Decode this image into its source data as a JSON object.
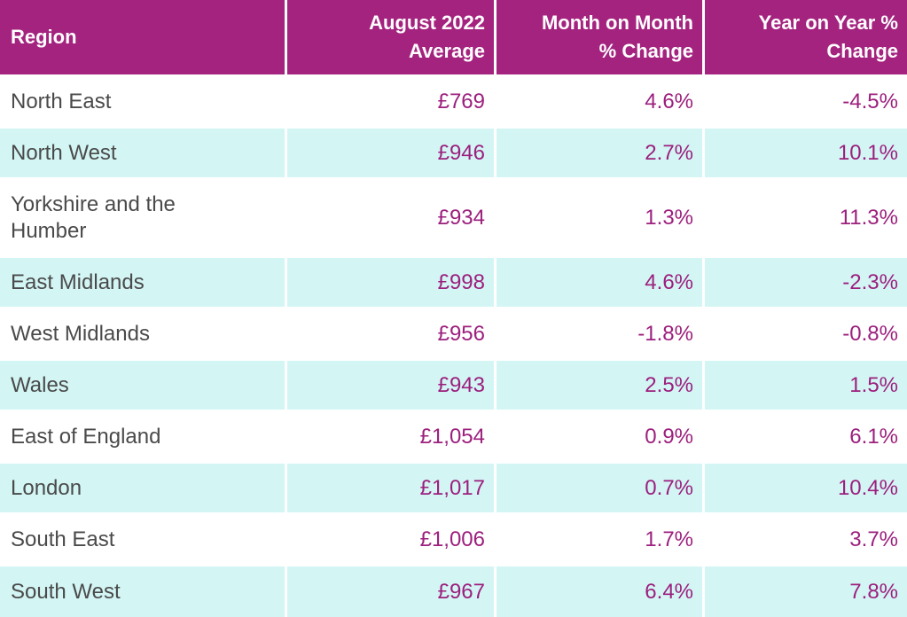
{
  "table": {
    "header": [
      "Region",
      "August 2022 Average",
      "Month on Month % Change",
      "Year on Year % Change"
    ],
    "rows": [
      [
        "North East",
        "£769",
        "4.6%",
        "-4.5%"
      ],
      [
        "North West",
        "£946",
        "2.7%",
        "10.1%"
      ],
      [
        "Yorkshire and the Humber",
        "£934",
        "1.3%",
        "11.3%"
      ],
      [
        "East Midlands",
        "£998",
        "4.6%",
        "-2.3%"
      ],
      [
        "West Midlands",
        "£956",
        "-1.8%",
        "-0.8%"
      ],
      [
        "Wales",
        "£943",
        "2.5%",
        "1.5%"
      ],
      [
        "East of England",
        "£1,054",
        "0.9%",
        "6.1%"
      ],
      [
        "London",
        "£1,017",
        "0.7%",
        "10.4%"
      ],
      [
        "South East",
        "£1,006",
        "1.7%",
        "3.7%"
      ],
      [
        "South West",
        "£967",
        "6.4%",
        "7.8%"
      ]
    ]
  }
}
